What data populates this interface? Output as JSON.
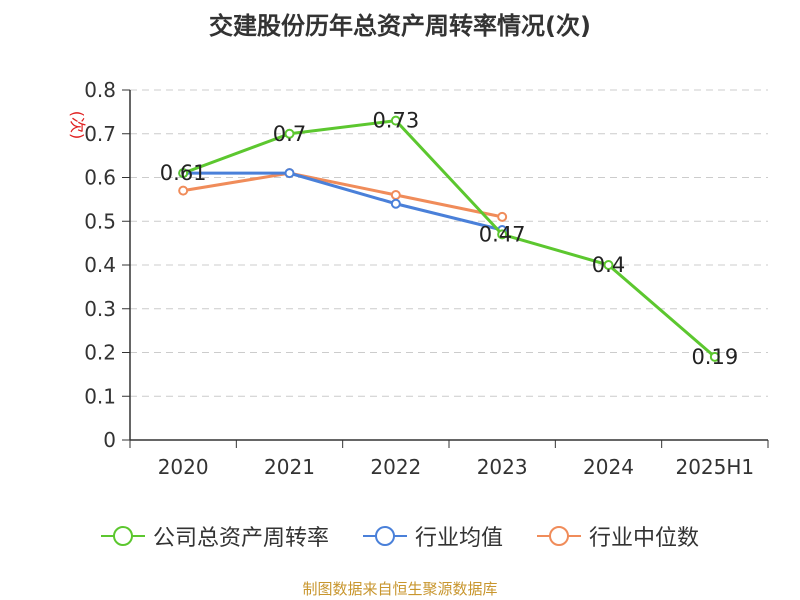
{
  "title": "交建股份历年总资产周转率情况(次)",
  "source_note": "制图数据来自恒生聚源数据库",
  "chart_data": {
    "type": "line",
    "title": "交建股份历年总资产周转率情况(次)",
    "ylabel": "(次)",
    "xlabel": "",
    "categories": [
      "2020",
      "2021",
      "2022",
      "2023",
      "2024",
      "2025H1"
    ],
    "ylim": [
      0,
      0.8
    ],
    "yticks": [
      "0",
      "0.1",
      "0.2",
      "0.3",
      "0.4",
      "0.5",
      "0.6",
      "0.7",
      "0.8"
    ],
    "grid": true,
    "legend_position": "bottom",
    "series": [
      {
        "name": "公司总资产周转率",
        "color": "#5cc72f",
        "values": [
          0.61,
          0.7,
          0.73,
          0.47,
          0.4,
          0.19
        ],
        "labels": [
          "0.61",
          "0.7",
          "0.73",
          "0.47",
          "0.4",
          "0.19"
        ]
      },
      {
        "name": "行业均值",
        "color": "#4a80d9",
        "values": [
          0.61,
          0.61,
          0.54,
          0.48,
          null,
          null
        ]
      },
      {
        "name": "行业中位数",
        "color": "#f08c5a",
        "values": [
          0.57,
          0.61,
          0.56,
          0.51,
          null,
          null
        ]
      }
    ]
  }
}
